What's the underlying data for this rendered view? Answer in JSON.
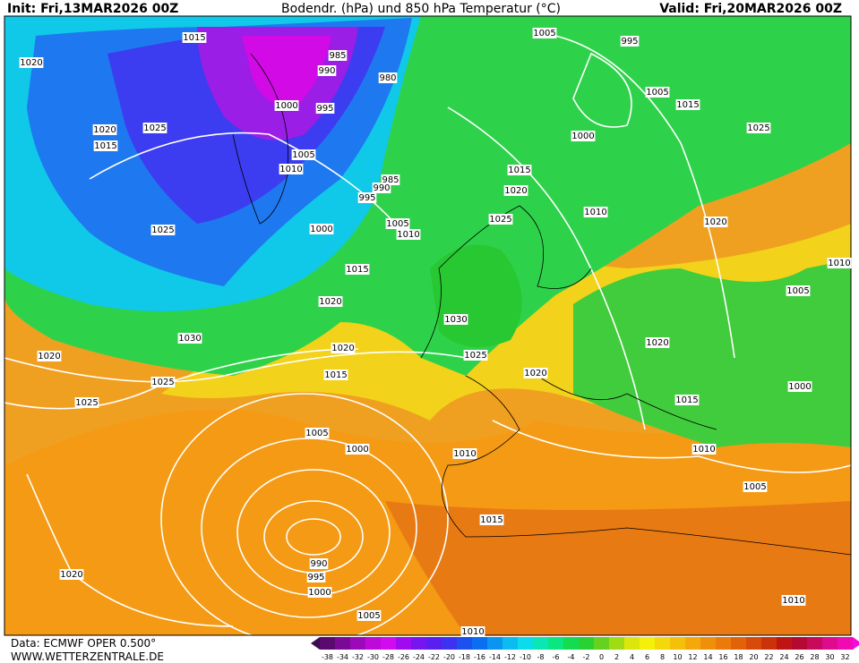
{
  "header": {
    "init": "Init: Fri,13MAR2026 00Z",
    "title": "Bodendr. (hPa) und 850 hPa Temperatur (°C)",
    "valid": "Valid: Fri,20MAR2026 00Z"
  },
  "isobar_labels": [
    "1015",
    "1020",
    "985",
    "990",
    "980",
    "1005",
    "995",
    "1000",
    "995",
    "1005",
    "1015",
    "1020",
    "1025",
    "1015",
    "1000",
    "1025",
    "1005",
    "1010",
    "1015",
    "985",
    "990",
    "995",
    "1020",
    "1010",
    "1025",
    "1005",
    "1010",
    "1000",
    "1020",
    "1025",
    "1010",
    "1015",
    "1005",
    "1020",
    "1030",
    "1030",
    "1020",
    "1020",
    "1025",
    "1020",
    "1015",
    "1020",
    "1025",
    "1000",
    "1015",
    "1025",
    "1005",
    "1010",
    "1000",
    "1010",
    "1005",
    "1015",
    "990",
    "995",
    "1020",
    "1000",
    "1010",
    "1005",
    "1010"
  ],
  "color_scale": [
    "-38",
    "-34",
    "-32",
    "-30",
    "-28",
    "-26",
    "-24",
    "-22",
    "-20",
    "-18",
    "-16",
    "-14",
    "-12",
    "-10",
    "-8",
    "-6",
    "-4",
    "-2",
    "0",
    "2",
    "4",
    "6",
    "8",
    "10",
    "12",
    "14",
    "16",
    "18",
    "20",
    "22",
    "24",
    "26",
    "28",
    "30",
    "32"
  ],
  "footer": {
    "data": "Data: ECMWF OPER 0.500°",
    "site": "WWW.WETTERZENTRALE.DE"
  }
}
